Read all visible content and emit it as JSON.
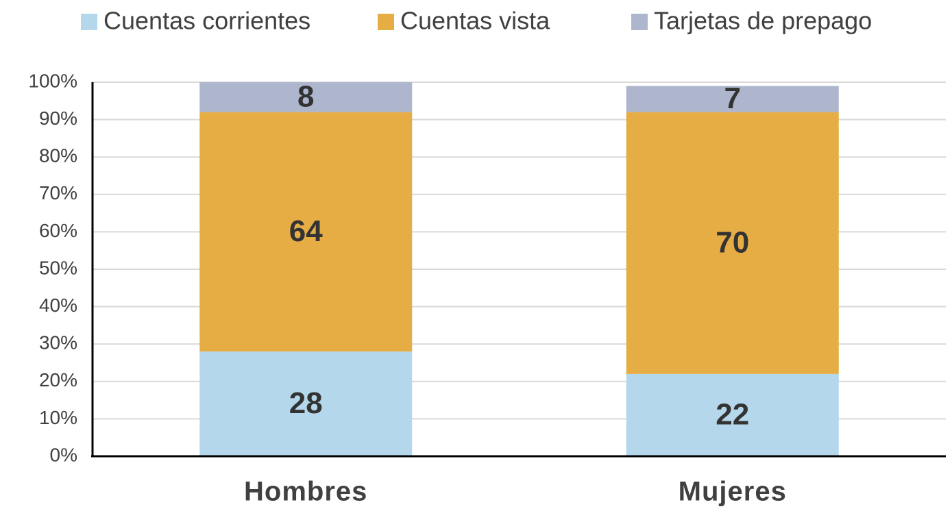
{
  "chart_data": {
    "type": "stacked_bar",
    "categories": [
      "Hombres",
      "Mujeres"
    ],
    "series": [
      {
        "name": "Cuentas corrientes",
        "color": "#b4d7ec",
        "values": [
          28,
          22
        ]
      },
      {
        "name": "Cuentas vista",
        "color": "#e6ad45",
        "values": [
          64,
          70
        ]
      },
      {
        "name": "Tarjetas de prepago",
        "color": "#adb6cc",
        "values": [
          8,
          7
        ]
      }
    ],
    "ylim": [
      0,
      100
    ],
    "yticks": [
      {
        "value": 0,
        "label": "0%"
      },
      {
        "value": 10,
        "label": "10%"
      },
      {
        "value": 20,
        "label": "20%"
      },
      {
        "value": 30,
        "label": "30%"
      },
      {
        "value": 40,
        "label": "40%"
      },
      {
        "value": 50,
        "label": "50%"
      },
      {
        "value": 60,
        "label": "60%"
      },
      {
        "value": 70,
        "label": "70%"
      },
      {
        "value": 80,
        "label": "80%"
      },
      {
        "value": 90,
        "label": "90%"
      },
      {
        "value": 100,
        "label": "100%"
      }
    ],
    "grid": true,
    "legend": "top"
  }
}
